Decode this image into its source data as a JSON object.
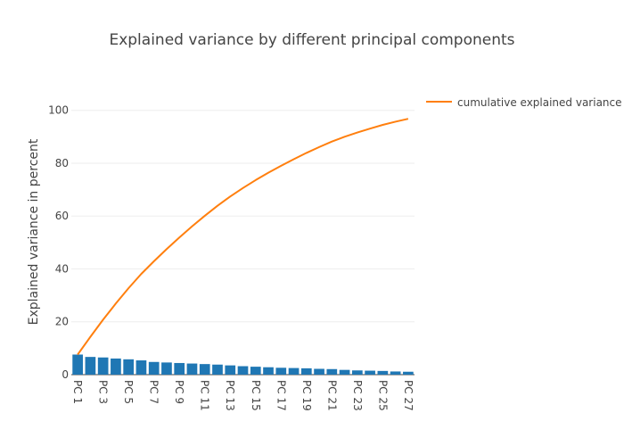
{
  "chart_data": {
    "type": "bar",
    "title": "Explained variance by different principal components",
    "xlabel": "",
    "ylabel": "Explained variance in percent",
    "categories": [
      "PC 1",
      "PC 2",
      "PC 3",
      "PC 4",
      "PC 5",
      "PC 6",
      "PC 7",
      "PC 8",
      "PC 9",
      "PC 10",
      "PC 11",
      "PC 12",
      "PC 13",
      "PC 14",
      "PC 15",
      "PC 16",
      "PC 17",
      "PC 18",
      "PC 19",
      "PC 20",
      "PC 21",
      "PC 22",
      "PC 23",
      "PC 24",
      "PC 25",
      "PC 26",
      "PC 27"
    ],
    "x_tick_labels": [
      "PC 1",
      "PC 3",
      "PC 5",
      "PC 7",
      "PC 9",
      "PC 11",
      "PC 13",
      "PC 15",
      "PC 17",
      "PC 19",
      "PC 21",
      "PC 23",
      "PC 25",
      "PC 27"
    ],
    "y_ticks": [
      0,
      20,
      40,
      60,
      80,
      100
    ],
    "ylim": [
      0,
      108
    ],
    "grid": true,
    "series": [
      {
        "type": "bar",
        "color": "#1f77b4",
        "values": [
          7.6,
          6.7,
          6.5,
          6.1,
          5.8,
          5.4,
          4.8,
          4.6,
          4.4,
          4.2,
          4.0,
          3.8,
          3.5,
          3.2,
          3.0,
          2.8,
          2.6,
          2.5,
          2.4,
          2.2,
          2.1,
          1.8,
          1.6,
          1.5,
          1.4,
          1.2,
          1.1
        ]
      },
      {
        "type": "line",
        "name": "cumulative explained variance",
        "color": "#ff7f0e",
        "values": [
          7.6,
          14.3,
          20.8,
          26.9,
          32.7,
          38.1,
          42.9,
          47.5,
          51.9,
          56.1,
          60.1,
          63.9,
          67.4,
          70.6,
          73.6,
          76.4,
          79.0,
          81.5,
          83.9,
          86.1,
          88.2,
          90.0,
          91.6,
          93.1,
          94.5,
          95.7,
          96.8
        ]
      }
    ],
    "legend_position": "top-right"
  }
}
